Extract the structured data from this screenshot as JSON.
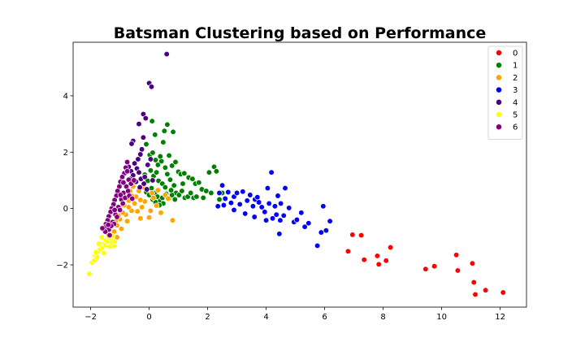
{
  "chart_data": {
    "type": "scatter",
    "title": "Batsman Clustering based on Performance",
    "xlabel": "",
    "ylabel": "",
    "xlim": [
      -2.6,
      12.9
    ],
    "ylim": [
      -3.5,
      5.9
    ],
    "xticks": [
      -2,
      0,
      2,
      4,
      6,
      8,
      10,
      12
    ],
    "yticks": [
      -2,
      0,
      2,
      4
    ],
    "grid": false,
    "legend_position": "top-right",
    "series": [
      {
        "name": "0",
        "color": "#ff0000",
        "points": [
          [
            6.8,
            -1.52
          ],
          [
            6.95,
            -0.93
          ],
          [
            7.25,
            -0.95
          ],
          [
            7.35,
            -1.82
          ],
          [
            7.8,
            -1.68
          ],
          [
            7.85,
            -1.98
          ],
          [
            8.1,
            -1.85
          ],
          [
            8.25,
            -1.38
          ],
          [
            9.45,
            -2.15
          ],
          [
            9.75,
            -2.05
          ],
          [
            10.5,
            -1.65
          ],
          [
            10.55,
            -2.2
          ],
          [
            11.05,
            -1.95
          ],
          [
            11.1,
            -2.62
          ],
          [
            11.15,
            -3.05
          ],
          [
            11.5,
            -2.9
          ],
          [
            12.1,
            -2.98
          ]
        ]
      },
      {
        "name": "1",
        "color": "#008000",
        "points": [
          [
            0.1,
            3.1
          ],
          [
            0.2,
            2.62
          ],
          [
            0.48,
            2.35
          ],
          [
            0.52,
            2.75
          ],
          [
            0.62,
            2.98
          ],
          [
            0.82,
            2.72
          ],
          [
            -0.1,
            2.28
          ],
          [
            0.02,
            1.9
          ],
          [
            0.12,
            1.98
          ],
          [
            0.22,
            1.72
          ],
          [
            0.3,
            1.55
          ],
          [
            0.42,
            1.68
          ],
          [
            0.55,
            1.45
          ],
          [
            0.68,
            1.88
          ],
          [
            0.78,
            1.52
          ],
          [
            0.9,
            1.65
          ],
          [
            1.0,
            1.3
          ],
          [
            1.08,
            1.22
          ],
          [
            1.2,
            1.25
          ],
          [
            1.35,
            1.1
          ],
          [
            1.48,
            1.05
          ],
          [
            1.58,
            0.88
          ],
          [
            1.7,
            0.92
          ],
          [
            1.8,
            0.68
          ],
          [
            1.95,
            0.62
          ],
          [
            2.05,
            1.28
          ],
          [
            2.22,
            1.48
          ],
          [
            2.3,
            1.32
          ],
          [
            2.12,
            0.55
          ],
          [
            2.4,
            0.32
          ],
          [
            0.05,
            1.35
          ],
          [
            0.15,
            1.15
          ],
          [
            0.25,
            1.28
          ],
          [
            0.32,
            0.98
          ],
          [
            0.45,
            0.88
          ],
          [
            0.55,
            0.75
          ],
          [
            0.62,
            1.22
          ],
          [
            0.72,
            1.02
          ],
          [
            0.85,
            0.82
          ],
          [
            0.92,
            0.55
          ],
          [
            1.02,
            0.48
          ],
          [
            1.12,
            0.62
          ],
          [
            1.22,
            0.38
          ],
          [
            1.32,
            0.42
          ],
          [
            1.42,
            0.55
          ],
          [
            1.52,
            0.38
          ],
          [
            1.62,
            0.42
          ],
          [
            -0.05,
            0.98
          ],
          [
            0.08,
            0.72
          ],
          [
            0.18,
            0.55
          ],
          [
            0.28,
            0.42
          ],
          [
            0.38,
            0.28
          ],
          [
            0.48,
            0.18
          ],
          [
            0.58,
            0.52
          ],
          [
            0.68,
            0.35
          ],
          [
            0.78,
            0.48
          ],
          [
            0.88,
            0.32
          ],
          [
            -0.2,
            0.75
          ],
          [
            -0.1,
            0.58
          ],
          [
            0.0,
            0.48
          ],
          [
            0.12,
            0.32
          ],
          [
            0.22,
            0.22
          ],
          [
            0.35,
            0.12
          ],
          [
            0.45,
            0.38
          ],
          [
            0.75,
            0.65
          ],
          [
            1.15,
            0.88
          ],
          [
            1.85,
            0.38
          ],
          [
            2.5,
            0.55
          ],
          [
            -0.15,
            1.2
          ],
          [
            0.38,
            1.85
          ]
        ]
      },
      {
        "name": "2",
        "color": "#ffa500",
        "points": [
          [
            -0.3,
            -0.35
          ],
          [
            -0.25,
            0.05
          ],
          [
            -0.15,
            0.25
          ],
          [
            0.0,
            -0.32
          ],
          [
            0.05,
            -0.08
          ],
          [
            0.15,
            0.38
          ],
          [
            0.25,
            0.1
          ],
          [
            0.4,
            -0.15
          ],
          [
            0.55,
            0.48
          ],
          [
            0.65,
            0.35
          ],
          [
            0.8,
            -0.42
          ],
          [
            -0.45,
            0.42
          ],
          [
            -0.5,
            0.18
          ],
          [
            -0.6,
            -0.08
          ],
          [
            -0.7,
            0.28
          ],
          [
            -0.8,
            -0.22
          ],
          [
            -0.9,
            0.52
          ],
          [
            -1.0,
            -0.38
          ],
          [
            -1.1,
            -0.6
          ],
          [
            -1.2,
            -0.82
          ],
          [
            -1.25,
            -1.08
          ],
          [
            -1.1,
            -1.02
          ],
          [
            -0.95,
            -0.72
          ],
          [
            -1.32,
            -1.25
          ],
          [
            -0.85,
            0.12
          ],
          [
            -0.75,
            -0.45
          ],
          [
            -0.65,
            0.62
          ],
          [
            -0.55,
            0.78
          ],
          [
            -0.35,
            0.62
          ],
          [
            -0.2,
            0.75
          ],
          [
            -1.15,
            -0.45
          ],
          [
            -1.0,
            0.05
          ],
          [
            -0.9,
            -0.15
          ],
          [
            -0.7,
            0.05
          ],
          [
            -0.4,
            -0.1
          ],
          [
            -0.3,
            0.3
          ],
          [
            0.1,
            0.55
          ],
          [
            0.3,
            0.65
          ],
          [
            -1.05,
            -0.25
          ],
          [
            -0.6,
            0.45
          ]
        ]
      },
      {
        "name": "3",
        "color": "#0000ff",
        "points": [
          [
            2.4,
            0.55
          ],
          [
            2.5,
            0.82
          ],
          [
            2.55,
            0.12
          ],
          [
            2.6,
            0.35
          ],
          [
            2.7,
            0.58
          ],
          [
            2.8,
            0.2
          ],
          [
            2.9,
            0.42
          ],
          [
            3.0,
            0.55
          ],
          [
            3.1,
            0.15
          ],
          [
            3.2,
            0.6
          ],
          [
            3.28,
            -0.18
          ],
          [
            3.35,
            0.28
          ],
          [
            3.45,
            0.48
          ],
          [
            3.55,
            0.08
          ],
          [
            3.62,
            0.32
          ],
          [
            3.75,
            0.22
          ],
          [
            3.85,
            0.05
          ],
          [
            3.95,
            -0.12
          ],
          [
            4.0,
            -0.42
          ],
          [
            4.05,
            0.72
          ],
          [
            4.1,
            0.18
          ],
          [
            4.18,
            1.28
          ],
          [
            4.22,
            -0.35
          ],
          [
            4.3,
            0.08
          ],
          [
            4.35,
            -0.22
          ],
          [
            4.45,
            -0.9
          ],
          [
            4.48,
            -0.42
          ],
          [
            4.5,
            0.18
          ],
          [
            4.6,
            -0.25
          ],
          [
            4.65,
            0.72
          ],
          [
            4.78,
            0.02
          ],
          [
            4.95,
            -0.48
          ],
          [
            5.05,
            -0.4
          ],
          [
            5.2,
            -0.15
          ],
          [
            5.32,
            -0.65
          ],
          [
            5.45,
            -0.52
          ],
          [
            5.75,
            -1.32
          ],
          [
            5.88,
            -0.85
          ],
          [
            5.95,
            0.08
          ],
          [
            6.05,
            -0.78
          ],
          [
            6.18,
            -0.45
          ],
          [
            4.4,
            0.45
          ],
          [
            3.6,
            -0.3
          ],
          [
            2.35,
            0.08
          ],
          [
            2.9,
            -0.05
          ],
          [
            3.7,
            0.4
          ]
        ]
      },
      {
        "name": "4",
        "color": "#4b0082",
        "points": [
          [
            0.6,
            5.48
          ],
          [
            0.0,
            4.45
          ],
          [
            0.08,
            4.32
          ],
          [
            -0.2,
            3.35
          ],
          [
            -0.12,
            3.2
          ],
          [
            -0.35,
            3.0
          ],
          [
            -0.55,
            2.4
          ],
          [
            -0.6,
            2.3
          ],
          [
            -0.3,
            1.92
          ],
          [
            -0.25,
            2.1
          ],
          [
            -0.38,
            1.75
          ],
          [
            -0.5,
            1.6
          ],
          [
            -0.42,
            1.42
          ],
          [
            -0.62,
            1.32
          ],
          [
            -0.7,
            1.48
          ],
          [
            -0.55,
            1.18
          ],
          [
            -0.35,
            1.28
          ],
          [
            -0.28,
            1.05
          ],
          [
            -0.15,
            1.12
          ],
          [
            -0.05,
            1.55
          ],
          [
            0.05,
            1.75
          ],
          [
            -0.2,
            2.52
          ],
          [
            -0.45,
            0.95
          ],
          [
            -0.32,
            0.75
          ],
          [
            -0.18,
            0.88
          ],
          [
            -0.08,
            0.68
          ],
          [
            0.12,
            1.0
          ],
          [
            -0.65,
            1.05
          ]
        ]
      },
      {
        "name": "5",
        "color": "#ffff00",
        "points": [
          [
            -2.05,
            -2.32
          ],
          [
            -1.95,
            -1.92
          ],
          [
            -1.88,
            -1.85
          ],
          [
            -1.85,
            -1.68
          ],
          [
            -1.78,
            -1.72
          ],
          [
            -1.72,
            -1.52
          ],
          [
            -1.68,
            -1.45
          ],
          [
            -1.6,
            -1.38
          ],
          [
            -1.55,
            -1.25
          ],
          [
            -1.5,
            -1.3
          ],
          [
            -1.48,
            -1.12
          ],
          [
            -1.42,
            -1.18
          ],
          [
            -1.38,
            -1.02
          ],
          [
            -1.35,
            -1.35
          ],
          [
            -1.3,
            -1.08
          ],
          [
            -1.28,
            -1.22
          ],
          [
            -1.25,
            -0.98
          ],
          [
            -1.2,
            -1.32
          ],
          [
            -1.55,
            -1.58
          ],
          [
            -1.62,
            -1.02
          ],
          [
            -1.72,
            -1.25
          ],
          [
            -1.82,
            -1.55
          ],
          [
            -1.42,
            -0.92
          ],
          [
            -1.18,
            -1.18
          ]
        ]
      },
      {
        "name": "6",
        "color": "#800080",
        "points": [
          [
            -0.75,
            1.65
          ],
          [
            -0.8,
            1.45
          ],
          [
            -0.85,
            1.25
          ],
          [
            -0.92,
            1.12
          ],
          [
            -0.98,
            0.95
          ],
          [
            -1.02,
            0.78
          ],
          [
            -1.08,
            0.62
          ],
          [
            -1.12,
            0.45
          ],
          [
            -1.18,
            0.3
          ],
          [
            -1.22,
            0.15
          ],
          [
            -1.28,
            0.0
          ],
          [
            -1.32,
            -0.12
          ],
          [
            -1.38,
            -0.28
          ],
          [
            -1.42,
            -0.42
          ],
          [
            -1.48,
            -0.55
          ],
          [
            -1.52,
            -0.68
          ],
          [
            -1.45,
            -0.85
          ],
          [
            -1.38,
            -0.75
          ],
          [
            -1.25,
            -0.48
          ],
          [
            -1.15,
            -0.22
          ],
          [
            -1.05,
            0.05
          ],
          [
            -0.95,
            0.32
          ],
          [
            -0.88,
            0.55
          ],
          [
            -0.78,
            0.78
          ],
          [
            -0.7,
            1.02
          ],
          [
            -0.62,
            0.88
          ],
          [
            -0.72,
            0.62
          ],
          [
            -0.82,
            0.38
          ],
          [
            -0.9,
            0.18
          ],
          [
            -1.0,
            -0.05
          ],
          [
            -1.1,
            -0.3
          ],
          [
            -1.2,
            -0.55
          ],
          [
            -1.3,
            -0.62
          ],
          [
            -1.5,
            -0.82
          ],
          [
            -1.4,
            -0.58
          ],
          [
            -1.18,
            -0.05
          ],
          [
            -0.98,
            0.48
          ],
          [
            -0.88,
            0.92
          ],
          [
            -0.75,
            1.32
          ],
          [
            -0.68,
            0.45
          ],
          [
            -0.58,
            0.35
          ],
          [
            -0.52,
            1.0
          ],
          [
            -1.35,
            -0.95
          ],
          [
            -1.6,
            -0.7
          ]
        ]
      }
    ]
  }
}
